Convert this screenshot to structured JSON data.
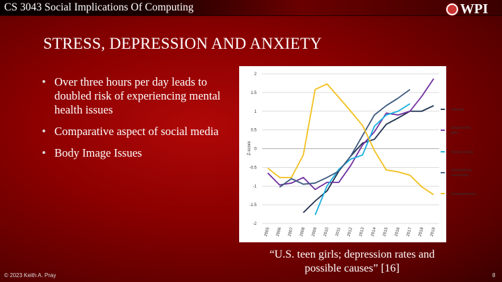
{
  "header": {
    "course": "CS 3043 Social Implications Of Computing",
    "logo_text": "WPI"
  },
  "slide": {
    "title": "STRESS, DEPRESSION AND ANXIETY",
    "bullets": [
      "Over three hours per day leads to doubled risk of experiencing mental health issues",
      "Comparative aspect of social media",
      "Body Image Issues"
    ],
    "caption": "“U.S. teen girls; depression rates and possible causes” [16]"
  },
  "footer": {
    "copyright": "© 2023 Keith A. Pray",
    "page": "8"
  },
  "chart_data": {
    "type": "line",
    "title": "",
    "xlabel": "",
    "ylabel": "Z-score",
    "x": [
      2005,
      2006,
      2007,
      2008,
      2009,
      2010,
      2011,
      2012,
      2013,
      2014,
      2015,
      2016,
      2017,
      2018,
      2019
    ],
    "ylim": [
      -2,
      2
    ],
    "yticks": [
      2,
      1.5,
      1,
      0.5,
      0,
      -0.5,
      -1,
      -1.5,
      -2
    ],
    "grid": true,
    "legend": "right",
    "series": [
      {
        "name": "Internet",
        "color": "#1f3350",
        "values": [
          null,
          null,
          null,
          -1.71,
          -1.4,
          -1.13,
          -0.6,
          -0.2,
          0.15,
          0.25,
          0.65,
          0.82,
          1.0,
          1.0,
          1.15
        ]
      },
      {
        "name": "Depression, girls",
        "color": "#7030a0",
        "values": [
          -0.65,
          -0.97,
          -0.92,
          -0.77,
          -1.09,
          -0.9,
          -0.9,
          -0.45,
          0.1,
          0.45,
          0.95,
          0.9,
          1.0,
          1.4,
          1.87
        ]
      },
      {
        "name": "Social media",
        "color": "#1ab0e0",
        "values": [
          null,
          null,
          null,
          null,
          -1.77,
          -1.0,
          -0.55,
          -0.28,
          -0.17,
          0.6,
          0.9,
          1.0,
          1.2,
          null,
          null
        ]
      },
      {
        "name": "Smartphone ownership",
        "color": "#3e5a80",
        "values": [
          null,
          -1.03,
          -0.8,
          -0.95,
          -0.92,
          -0.77,
          -0.6,
          -0.2,
          0.35,
          0.9,
          1.15,
          1.35,
          1.58,
          null,
          null
        ]
      },
      {
        "name": "Unemployment",
        "color": "#f2c01e",
        "values": [
          -0.52,
          -0.77,
          -0.77,
          -0.17,
          1.58,
          1.73,
          1.37,
          1.0,
          0.62,
          -0.05,
          -0.57,
          -0.62,
          -0.71,
          -1.02,
          -1.23
        ]
      }
    ]
  }
}
